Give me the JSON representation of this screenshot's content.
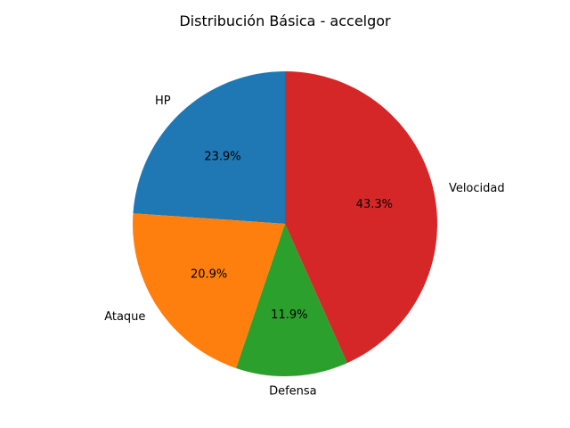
{
  "chart_data": {
    "type": "pie",
    "title": "Distribución Básica - accelgor",
    "start_angle_deg": 90,
    "direction": "counterclockwise",
    "slices": [
      {
        "label": "HP",
        "value": 23.9,
        "pct_label": "23.9%",
        "color": "#1f77b4"
      },
      {
        "label": "Ataque",
        "value": 20.9,
        "pct_label": "20.9%",
        "color": "#ff7f0e"
      },
      {
        "label": "Defensa",
        "value": 11.9,
        "pct_label": "11.9%",
        "color": "#2ca02c"
      },
      {
        "label": "Velocidad",
        "value": 43.3,
        "pct_label": "43.3%",
        "color": "#d62728"
      }
    ]
  }
}
